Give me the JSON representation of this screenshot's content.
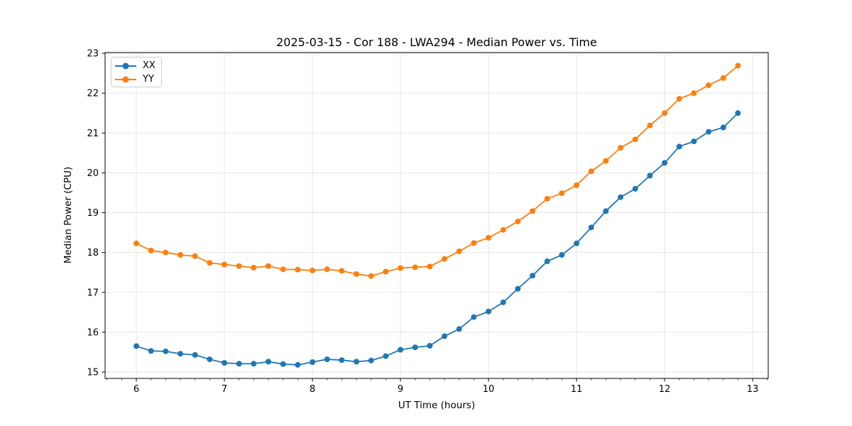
{
  "chart_data": {
    "type": "line",
    "title": "2025-03-15 - Cor 188 - LWA294 - Median Power vs. Time",
    "xlabel": "UT Time (hours)",
    "ylabel": "Median Power (CPU)",
    "xlim": [
      5.645,
      13.177
    ],
    "ylim": [
      14.84,
      23.02
    ],
    "xticks": [
      6,
      7,
      8,
      9,
      10,
      11,
      12,
      13
    ],
    "yticks": [
      15,
      16,
      17,
      18,
      19,
      20,
      21,
      22,
      23
    ],
    "grid": true,
    "grid_color": "#e3e3e3",
    "legend_position": "upper left",
    "marker": "circle",
    "x": [
      6,
      6.167,
      6.333,
      6.5,
      6.667,
      6.833,
      7,
      7.167,
      7.333,
      7.5,
      7.667,
      7.833,
      8,
      8.167,
      8.333,
      8.5,
      8.667,
      8.833,
      9,
      9.167,
      9.333,
      9.5,
      9.667,
      9.833,
      10,
      10.167,
      10.333,
      10.5,
      10.667,
      10.833,
      11,
      11.167,
      11.333,
      11.5,
      11.667,
      11.833,
      12,
      12.167,
      12.333,
      12.5,
      12.667,
      12.833
    ],
    "series": [
      {
        "name": "XX",
        "color": "#1f77b4",
        "values": [
          15.65,
          15.53,
          15.52,
          15.46,
          15.43,
          15.32,
          15.23,
          15.21,
          15.21,
          15.26,
          15.2,
          15.18,
          15.25,
          15.32,
          15.3,
          15.26,
          15.29,
          15.4,
          15.56,
          15.62,
          15.66,
          15.9,
          16.08,
          16.38,
          16.52,
          16.75,
          17.09,
          17.42,
          17.78,
          17.94,
          18.23,
          18.63,
          19.04,
          19.39,
          19.6,
          19.93,
          20.25,
          20.66,
          20.79,
          21.03,
          21.14,
          21.5
        ]
      },
      {
        "name": "YY",
        "color": "#ff7f0e",
        "values": [
          18.23,
          18.05,
          18.0,
          17.94,
          17.91,
          17.74,
          17.7,
          17.66,
          17.62,
          17.66,
          17.58,
          17.57,
          17.55,
          17.58,
          17.54,
          17.46,
          17.41,
          17.52,
          17.61,
          17.63,
          17.65,
          17.84,
          18.03,
          18.24,
          18.37,
          18.57,
          18.78,
          19.04,
          19.35,
          19.49,
          19.69,
          20.04,
          20.3,
          20.63,
          20.84,
          21.19,
          21.5,
          21.86,
          22.0,
          22.2,
          22.38,
          22.69
        ]
      }
    ]
  }
}
